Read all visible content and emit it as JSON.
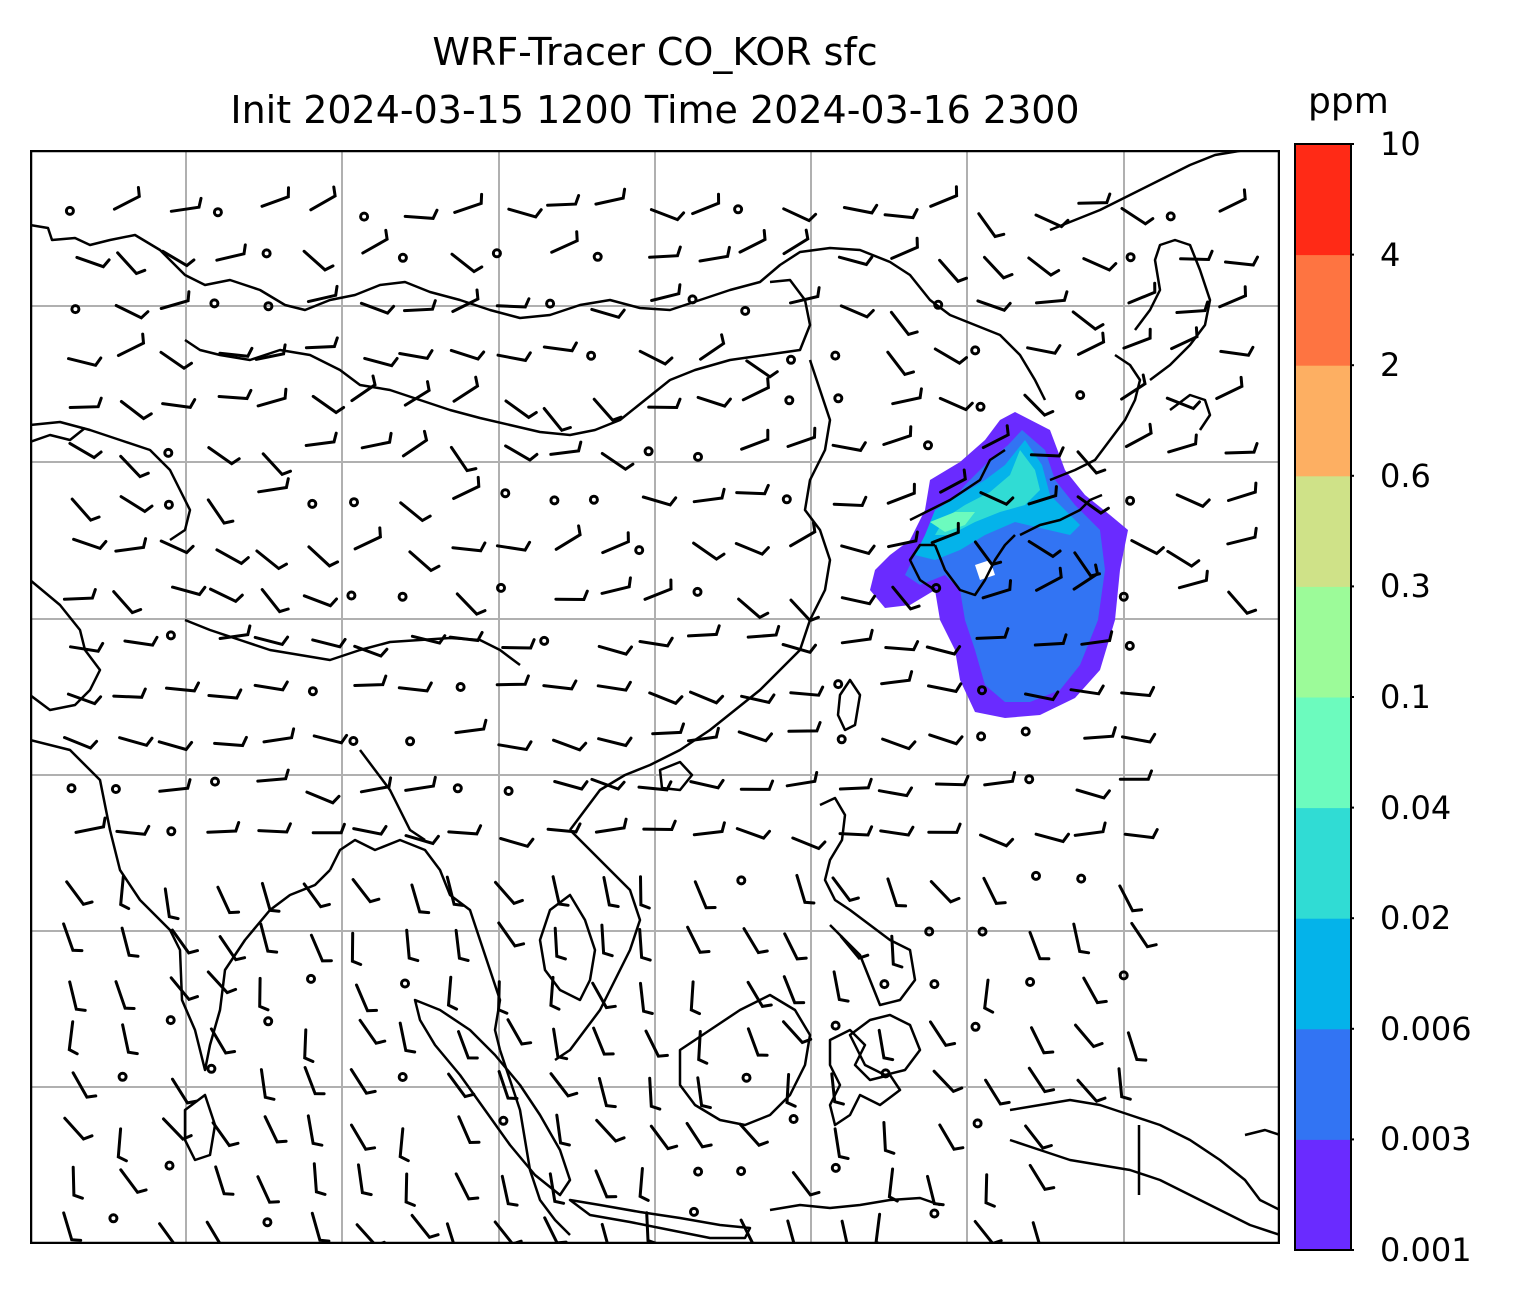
{
  "title": {
    "line1": "WRF-Tracer CO_KOR sfc",
    "line2": "Init 2024-03-15 1200 Time 2024-03-16 2300"
  },
  "colorbar": {
    "units": "ppm",
    "tick_labels": [
      "0.001",
      "0.003",
      "0.006",
      "0.02",
      "0.04",
      "0.1",
      "0.3",
      "0.6",
      "2",
      "4",
      "10"
    ],
    "colors": [
      "#6a2bff",
      "#3274f3",
      "#04b3ea",
      "#30dcd4",
      "#6cfbbe",
      "#9cfb99",
      "#cfe288",
      "#fdaf62",
      "#fe7441",
      "#ff2a16"
    ]
  },
  "map": {
    "region": "East and Southeast Asia",
    "gridlines": true,
    "coastlines": true,
    "country_borders": true,
    "field": "CO_KOR tracer concentration",
    "overlay": "wind barbs",
    "plume_levels_shown": [
      "0.001",
      "0.003",
      "0.006",
      "0.02",
      "0.04"
    ]
  }
}
